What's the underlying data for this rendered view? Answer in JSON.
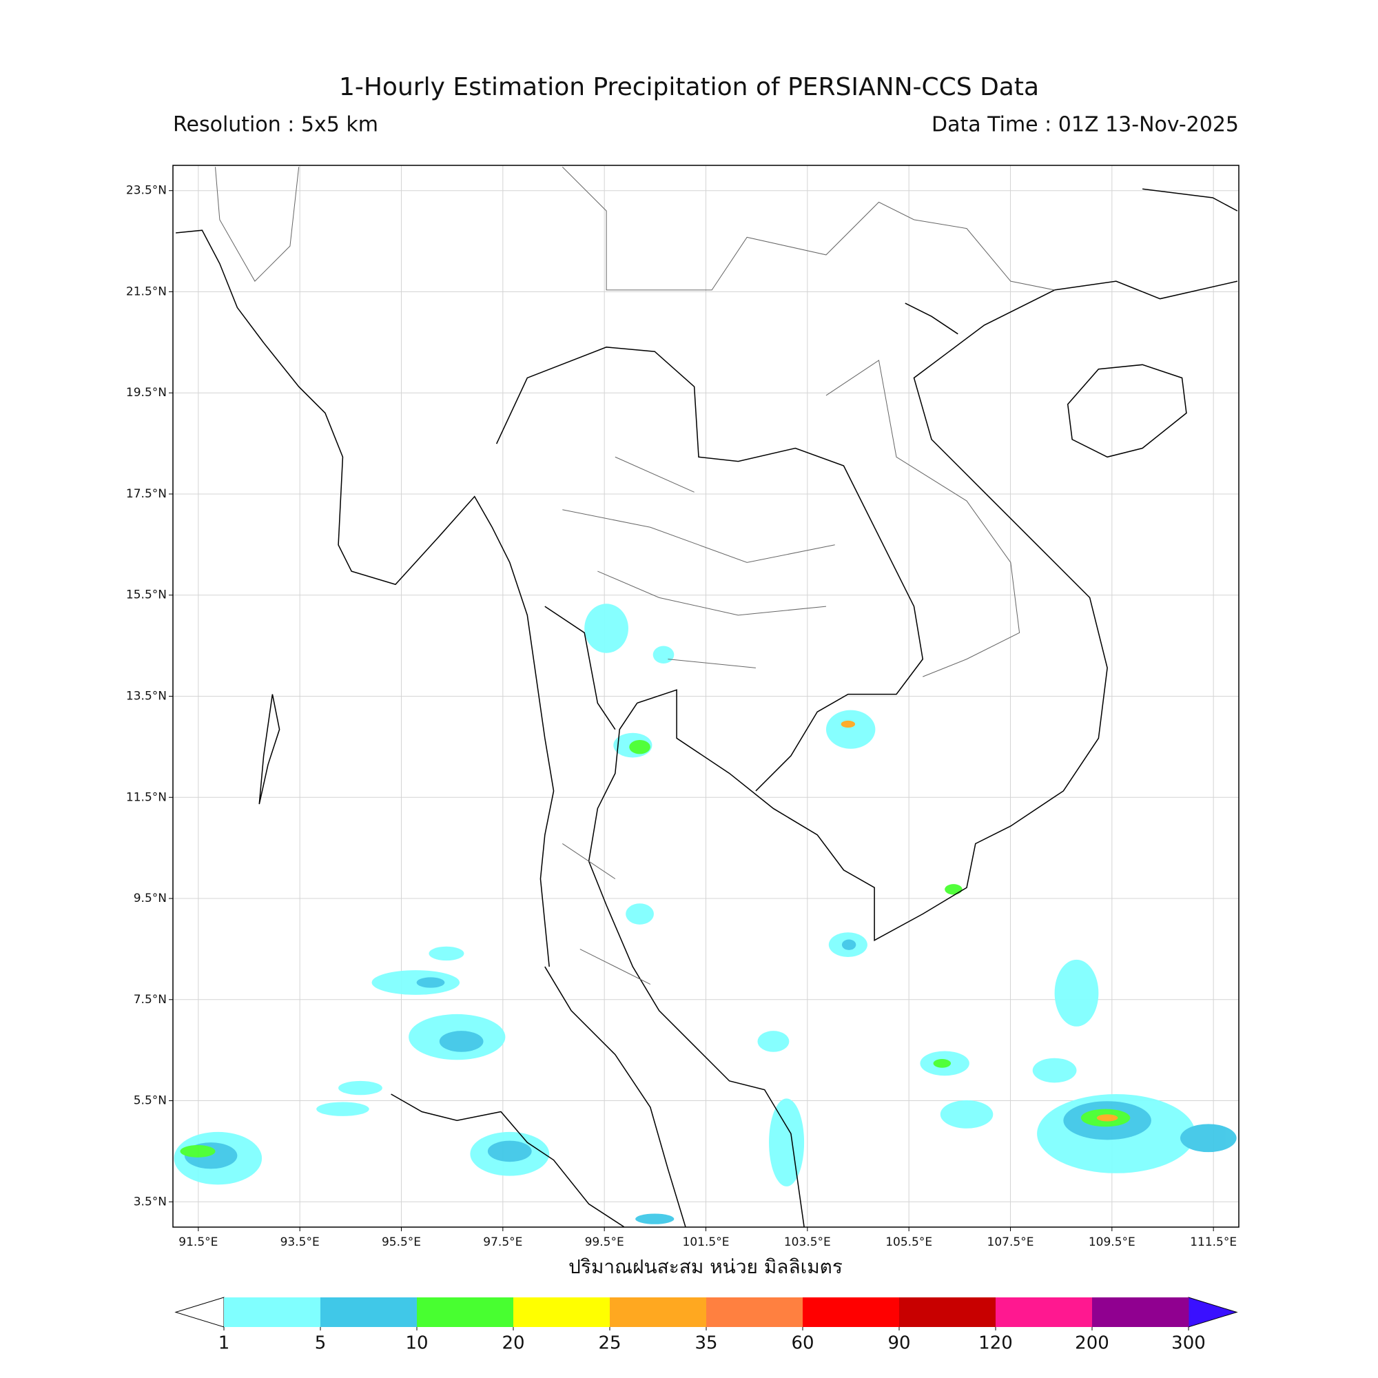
{
  "title": "1-Hourly Estimation Precipitation of PERSIANN-CCS Data",
  "resolution": "Resolution : 5x5 km",
  "data_time": "Data Time : 01Z 13-Nov-2025",
  "map": {
    "lonlim": [
      91,
      112
    ],
    "latlim": [
      3,
      24
    ],
    "lonticks": [
      {
        "value": 91.5,
        "label": "91.5°E"
      },
      {
        "value": 93.5,
        "label": "93.5°E"
      },
      {
        "value": 95.5,
        "label": "95.5°E"
      },
      {
        "value": 97.5,
        "label": "97.5°E"
      },
      {
        "value": 99.5,
        "label": "99.5°E"
      },
      {
        "value": 101.5,
        "label": "101.5°E"
      },
      {
        "value": 103.5,
        "label": "103.5°E"
      },
      {
        "value": 105.5,
        "label": "105.5°E"
      },
      {
        "value": 107.5,
        "label": "107.5°E"
      },
      {
        "value": 109.5,
        "label": "109.5°E"
      },
      {
        "value": 111.5,
        "label": "111.5°E"
      }
    ],
    "latticks": [
      {
        "value": 3.5,
        "label": "3.5°N"
      },
      {
        "value": 5.5,
        "label": "5.5°N"
      },
      {
        "value": 7.5,
        "label": "7.5°N"
      },
      {
        "value": 9.5,
        "label": "9.5°N"
      },
      {
        "value": 11.5,
        "label": "11.5°N"
      },
      {
        "value": 13.5,
        "label": "13.5°N"
      },
      {
        "value": 15.5,
        "label": "15.5°N"
      },
      {
        "value": 17.5,
        "label": "17.5°N"
      },
      {
        "value": 19.5,
        "label": "19.5°N"
      },
      {
        "value": 21.5,
        "label": "21.5°N"
      },
      {
        "value": 23.5,
        "label": "23.5°N"
      }
    ],
    "grid": true
  },
  "colorbar": {
    "label": "ปริมาณฝนสะสม หน่วย มิลลิเมตร",
    "levels": [
      1,
      5,
      10,
      20,
      25,
      35,
      60,
      90,
      120,
      200,
      300
    ],
    "colors": [
      "#80ffff",
      "#40c8e8",
      "#48ff30",
      "#ffff00",
      "#ffa820",
      "#ff8040",
      "#ff0000",
      "#c80000",
      "#ff1890",
      "#900090"
    ],
    "under_color": "#ffffff",
    "over_color": "#3a10ff"
  }
}
